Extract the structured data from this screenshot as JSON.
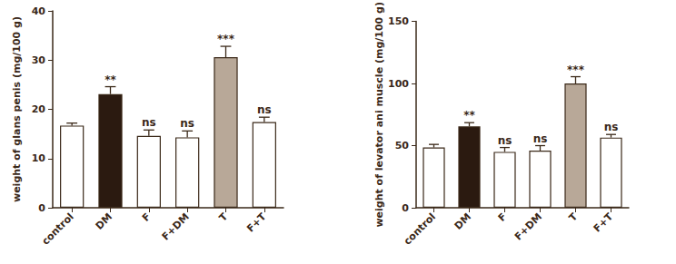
{
  "chart_data": [
    {
      "type": "bar",
      "y_label": "weight of glans penis (mg/100 g)",
      "categories": [
        "control",
        "DM",
        "F",
        "F+DM",
        "T",
        "F+T"
      ],
      "values": [
        16.7,
        23.1,
        14.6,
        14.3,
        30.6,
        17.4
      ],
      "errors": [
        0.5,
        1.5,
        1.2,
        1.3,
        2.2,
        1.0
      ],
      "annotations": [
        null,
        "**",
        "ns",
        "ns",
        "***",
        "ns"
      ],
      "colors": [
        "#ffffff",
        "#2b1a10",
        "#ffffff",
        "#ffffff",
        "#b8a898",
        "#ffffff"
      ],
      "ylim": [
        0,
        40
      ],
      "yticks": [
        0,
        10,
        20,
        30,
        40
      ],
      "grid": false
    },
    {
      "type": "bar",
      "y_label": "weight of levator ani muscle (mg/100 g)",
      "categories": [
        "control",
        "DM",
        "F",
        "F+DM",
        "T",
        "F+T"
      ],
      "values": [
        48.5,
        65.5,
        45,
        46,
        100,
        56.5
      ],
      "errors": [
        2.5,
        3,
        3.5,
        4,
        5.5,
        2.5
      ],
      "annotations": [
        null,
        "**",
        "ns",
        "ns",
        "***",
        "ns"
      ],
      "colors": [
        "#ffffff",
        "#2b1a10",
        "#ffffff",
        "#ffffff",
        "#b8a898",
        "#ffffff"
      ],
      "ylim": [
        0,
        150
      ],
      "yticks": [
        0,
        50,
        100,
        150
      ],
      "grid": false
    }
  ]
}
